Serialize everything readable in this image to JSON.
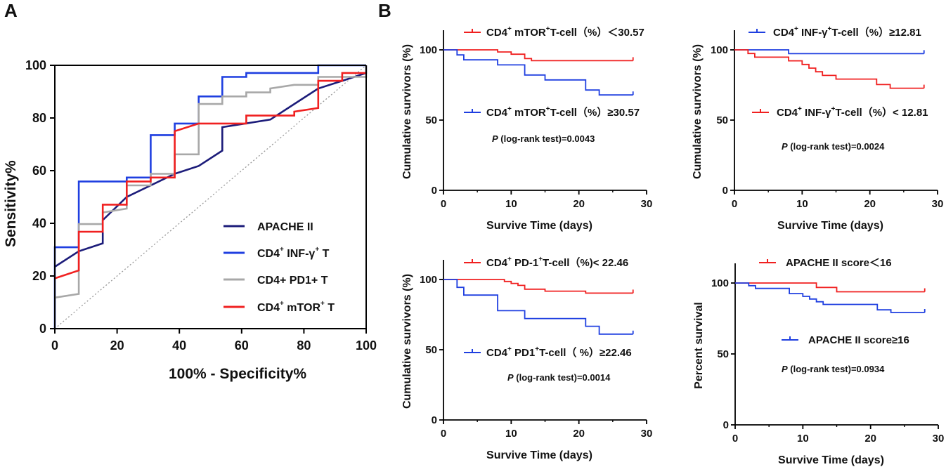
{
  "panels": {
    "a": "A",
    "b": "B"
  },
  "chart_data": [
    {
      "id": "roc",
      "type": "line",
      "title": "",
      "xlabel": "100% - Specificity%",
      "ylabel": "Sensitivity%",
      "xlim": [
        0,
        100
      ],
      "ylim": [
        0,
        100
      ],
      "xticks": [
        "0",
        "20",
        "40",
        "60",
        "80",
        "100"
      ],
      "yticks": [
        "0",
        "20",
        "40",
        "60",
        "80",
        "100"
      ],
      "reference_line": {
        "style": "dotted",
        "from": [
          0,
          0
        ],
        "to": [
          100,
          100
        ]
      },
      "legend_placement": "bottom-right",
      "series": [
        {
          "name": "APACHE II",
          "label_main": "APACHE II",
          "color": "#1c1c7a",
          "step": false,
          "points": [
            [
              0,
              23.5
            ],
            [
              7.7,
              29.4
            ],
            [
              15.4,
              32.4
            ],
            [
              15.4,
              41.2
            ],
            [
              23.1,
              50
            ],
            [
              38.5,
              58.8
            ],
            [
              46.2,
              61.8
            ],
            [
              53.8,
              67.6
            ],
            [
              53.8,
              76.5
            ],
            [
              69.2,
              79.4
            ],
            [
              76.9,
              85.3
            ],
            [
              84.6,
              91.2
            ],
            [
              92.3,
              94.1
            ],
            [
              100,
              97.1
            ],
            [
              100,
              100
            ]
          ]
        },
        {
          "name": "CD4+ INF-γ+ T",
          "label_main": "CD4",
          "label_sup1": "+",
          "label_mid": " INF-γ",
          "label_sup2": "+",
          "label_end": " T",
          "color": "#1f3fe0",
          "step": true,
          "points": [
            [
              0,
              0
            ],
            [
              0,
              30.9
            ],
            [
              7.7,
              30.9
            ],
            [
              7.7,
              55.9
            ],
            [
              23.1,
              55.9
            ],
            [
              23.1,
              57.4
            ],
            [
              30.8,
              57.4
            ],
            [
              30.8,
              73.5
            ],
            [
              38.5,
              73.5
            ],
            [
              38.5,
              77.9
            ],
            [
              46.2,
              77.9
            ],
            [
              46.2,
              88.2
            ],
            [
              53.8,
              88.2
            ],
            [
              53.8,
              95.6
            ],
            [
              61.5,
              95.6
            ],
            [
              61.5,
              97.1
            ],
            [
              84.6,
              97.1
            ],
            [
              84.6,
              100
            ],
            [
              100,
              100
            ]
          ]
        },
        {
          "name": "CD4+ PD1+ T",
          "label_main": "CD4+ PD1+ T",
          "color": "#a8a8a8",
          "step": true,
          "points": [
            [
              0,
              11.8
            ],
            [
              7.7,
              13.2
            ],
            [
              7.7,
              39.7
            ],
            [
              15.4,
              39.7
            ],
            [
              15.4,
              44.1
            ],
            [
              23.1,
              45.6
            ],
            [
              23.1,
              54.4
            ],
            [
              30.8,
              54.4
            ],
            [
              30.8,
              58.8
            ],
            [
              38.5,
              58.8
            ],
            [
              38.5,
              66.2
            ],
            [
              46.2,
              66.2
            ],
            [
              46.2,
              85.3
            ],
            [
              53.8,
              85.3
            ],
            [
              53.8,
              88.2
            ],
            [
              61.5,
              88.2
            ],
            [
              61.5,
              89.7
            ],
            [
              69.2,
              89.7
            ],
            [
              69.2,
              91.2
            ],
            [
              76.9,
              92.6
            ],
            [
              84.6,
              92.6
            ],
            [
              84.6,
              95.6
            ],
            [
              100,
              95.6
            ],
            [
              100,
              100
            ]
          ]
        },
        {
          "name": "CD4+ mTOR+ T",
          "label_main": "CD4",
          "label_sup1": "+",
          "label_mid": " mTOR",
          "label_sup2": "+",
          "label_end": " T",
          "color": "#f02020",
          "step": true,
          "points": [
            [
              0,
              19.1
            ],
            [
              7.7,
              22.1
            ],
            [
              7.7,
              36.8
            ],
            [
              15.4,
              36.8
            ],
            [
              15.4,
              47.1
            ],
            [
              23.1,
              47.1
            ],
            [
              23.1,
              55.9
            ],
            [
              30.8,
              55.9
            ],
            [
              30.8,
              57.4
            ],
            [
              38.5,
              57.4
            ],
            [
              38.5,
              75
            ],
            [
              46.2,
              77.9
            ],
            [
              61.5,
              77.9
            ],
            [
              61.5,
              80.9
            ],
            [
              76.9,
              80.9
            ],
            [
              76.9,
              82.4
            ],
            [
              84.6,
              83.8
            ],
            [
              84.6,
              94.1
            ],
            [
              92.3,
              94.1
            ],
            [
              92.3,
              97.1
            ],
            [
              100,
              97.1
            ]
          ]
        }
      ]
    },
    {
      "id": "km1",
      "type": "line",
      "xlabel": "Survive Time (days)",
      "ylabel": "Cumulative survivors (%)",
      "xlim": [
        0,
        30
      ],
      "ylim": [
        0,
        100
      ],
      "xticks": [
        "0",
        "10",
        "20",
        "30"
      ],
      "yticks": [
        "0",
        "50",
        "100"
      ],
      "pvalue_prefix": "P",
      "pvalue": " (log-rank test)=0.0043",
      "series": [
        {
          "name": "CD4+ mTOR+T-cell（%）＜30.57",
          "t1": "CD4",
          "s1": "+",
          "t2": " mTOR",
          "s2": "+",
          "t3": "T-cell（%）＜30.57",
          "color": "#f02020",
          "points": [
            [
              0,
              100
            ],
            [
              8,
              100
            ],
            [
              8,
              98.5
            ],
            [
              10,
              98.5
            ],
            [
              10,
              96.9
            ],
            [
              12,
              96.9
            ],
            [
              12,
              93.8
            ],
            [
              13,
              93.8
            ],
            [
              13,
              92.3
            ],
            [
              28,
              92.3
            ]
          ]
        },
        {
          "name": "CD4+ mTOR+T-cell（%）≥30.57",
          "t1": "CD4",
          "s1": "+",
          "t2": " mTOR",
          "s2": "+",
          "t3": "T-cell（%）≥30.57",
          "color": "#1f3fe0",
          "points": [
            [
              0,
              100
            ],
            [
              2,
              100
            ],
            [
              2,
              96.4
            ],
            [
              3,
              96.4
            ],
            [
              3,
              92.9
            ],
            [
              8,
              92.9
            ],
            [
              8,
              89.3
            ],
            [
              12,
              89.3
            ],
            [
              12,
              82.1
            ],
            [
              15,
              82.1
            ],
            [
              15,
              78.6
            ],
            [
              21,
              78.6
            ],
            [
              21,
              71.4
            ],
            [
              23,
              71.4
            ],
            [
              23,
              67.9
            ],
            [
              28,
              67.9
            ]
          ]
        }
      ]
    },
    {
      "id": "km2",
      "type": "line",
      "xlabel": "Survive Time (days)",
      "ylabel": "Cumulative survivors (%)",
      "xlim": [
        0,
        30
      ],
      "ylim": [
        0,
        100
      ],
      "xticks": [
        "0",
        "10",
        "20",
        "30"
      ],
      "yticks": [
        "0",
        "50",
        "100"
      ],
      "pvalue_prefix": "P",
      "pvalue": " (log-rank test)=0.0024",
      "series": [
        {
          "name": "CD4+ INF-γ+T-cell（%）≥12.81",
          "t1": "CD4",
          "s1": "+",
          "t2": " INF-γ",
          "s2": "+",
          "t3": "T-cell（%）≥12.81",
          "color": "#1f3fe0",
          "points": [
            [
              0,
              100
            ],
            [
              8,
              100
            ],
            [
              8,
              97.3
            ],
            [
              28,
              97.3
            ]
          ]
        },
        {
          "name": "CD4+ INF-γ+T-cell（%）< 12.81",
          "t1": "CD4",
          "s1": "+",
          "t2": " INF-γ",
          "s2": "+",
          "t3": "T-cell（%）< 12.81",
          "color": "#f02020",
          "points": [
            [
              0,
              100
            ],
            [
              2,
              100
            ],
            [
              2,
              97.4
            ],
            [
              3,
              97.4
            ],
            [
              3,
              94.8
            ],
            [
              8,
              94.8
            ],
            [
              8,
              92.2
            ],
            [
              10,
              92.2
            ],
            [
              10,
              89.6
            ],
            [
              11,
              89.6
            ],
            [
              11,
              87
            ],
            [
              12,
              87
            ],
            [
              12,
              84.4
            ],
            [
              13,
              84.4
            ],
            [
              13,
              81.8
            ],
            [
              15,
              81.8
            ],
            [
              15,
              79.2
            ],
            [
              21,
              79.2
            ],
            [
              21,
              75.3
            ],
            [
              23,
              75.3
            ],
            [
              23,
              72.7
            ],
            [
              28,
              72.7
            ]
          ]
        }
      ]
    },
    {
      "id": "km3",
      "type": "line",
      "xlabel": "Survive Time (days)",
      "ylabel": "Cumulative survivors (%)",
      "xlim": [
        0,
        30
      ],
      "ylim": [
        0,
        100
      ],
      "xticks": [
        "0",
        "10",
        "20",
        "30"
      ],
      "yticks": [
        "0",
        "50",
        "100"
      ],
      "pvalue_prefix": "P",
      "pvalue": " (log-rank test)=0.0014",
      "series": [
        {
          "name": "CD4+ PD-1+T-cell（%)< 22.46",
          "t1": "CD4",
          "s1": "+",
          "t2": " PD-1",
          "s2": "+",
          "t3": "T-cell（%)< 22.46",
          "color": "#f02020",
          "points": [
            [
              0,
              100
            ],
            [
              9,
              100
            ],
            [
              9,
              98.6
            ],
            [
              10,
              98.6
            ],
            [
              10,
              97.2
            ],
            [
              11,
              97.2
            ],
            [
              11,
              95.8
            ],
            [
              12,
              95.8
            ],
            [
              12,
              93.1
            ],
            [
              15,
              93.1
            ],
            [
              15,
              91.7
            ],
            [
              21,
              91.7
            ],
            [
              21,
              90.3
            ],
            [
              28,
              90.3
            ]
          ]
        },
        {
          "name": "CD4+ PD1+T-cell（ %）≥22.46",
          "t1": "CD4",
          "s1": "+",
          "t2": " PD1",
          "s2": "+",
          "t3": "T-cell（ %）≥22.46",
          "color": "#1f3fe0",
          "points": [
            [
              0,
              100
            ],
            [
              2,
              100
            ],
            [
              2,
              94.4
            ],
            [
              3,
              94.4
            ],
            [
              3,
              88.9
            ],
            [
              8,
              88.9
            ],
            [
              8,
              77.8
            ],
            [
              12,
              77.8
            ],
            [
              12,
              72.2
            ],
            [
              21,
              72.2
            ],
            [
              21,
              66.7
            ],
            [
              23,
              66.7
            ],
            [
              23,
              61.1
            ],
            [
              28,
              61.1
            ]
          ]
        }
      ]
    },
    {
      "id": "km4",
      "type": "line",
      "xlabel": "Survive Time (days)",
      "ylabel": "Percent survival",
      "xlim": [
        0,
        30
      ],
      "ylim": [
        0,
        100
      ],
      "xticks": [
        "0",
        "10",
        "20",
        "30"
      ],
      "yticks": [
        "0",
        "50",
        "100"
      ],
      "pvalue_prefix": "P",
      "pvalue": " (log-rank test)=0.0934",
      "series": [
        {
          "name": "APACHE II score＜16",
          "t1": "APACHE II score＜16",
          "color": "#f02020",
          "points": [
            [
              0,
              100
            ],
            [
              12,
              100
            ],
            [
              12,
              96.9
            ],
            [
              15,
              96.9
            ],
            [
              15,
              93.8
            ],
            [
              28,
              93.8
            ]
          ]
        },
        {
          "name": "APACHE II score≥16",
          "t1": "APACHE II score≥16",
          "color": "#1f3fe0",
          "points": [
            [
              0,
              100
            ],
            [
              2,
              100
            ],
            [
              2,
              98.1
            ],
            [
              3,
              98.1
            ],
            [
              3,
              96.2
            ],
            [
              8,
              96.2
            ],
            [
              8,
              92.5
            ],
            [
              10,
              92.5
            ],
            [
              10,
              90.6
            ],
            [
              11,
              90.6
            ],
            [
              11,
              88.7
            ],
            [
              12,
              88.7
            ],
            [
              12,
              86.8
            ],
            [
              13,
              86.8
            ],
            [
              13,
              84.9
            ],
            [
              21,
              84.9
            ],
            [
              21,
              81.1
            ],
            [
              23,
              81.1
            ],
            [
              23,
              79.2
            ],
            [
              28,
              79.2
            ]
          ]
        }
      ]
    }
  ]
}
